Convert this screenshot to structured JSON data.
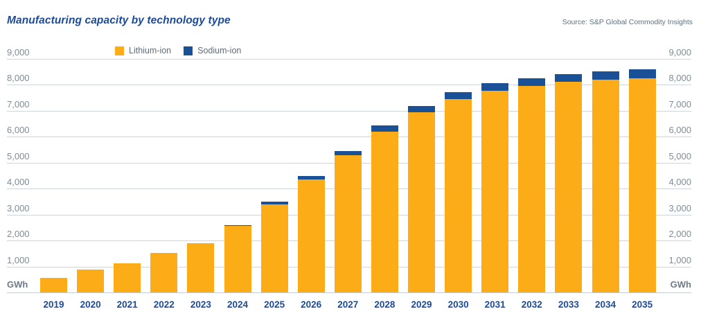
{
  "header": {
    "title": "Manufacturing capacity by technology type",
    "source": "Source: S&P Global Commodity Insights"
  },
  "axis": {
    "unit_label": "GWh",
    "yticks": [
      "9,000",
      "8,000",
      "7,000",
      "6,000",
      "5,000",
      "4,000",
      "3,000",
      "2,000",
      "1,000"
    ]
  },
  "colors": {
    "lithium": "#FBAC17",
    "sodium": "#1A5196",
    "title_blue": "#1B4A9B",
    "gridline": "#CDD5DA"
  },
  "chart_data": {
    "type": "bar",
    "stacked": true,
    "title": "Manufacturing capacity by technology type",
    "ylabel": "GWh",
    "ylim": [
      0,
      9000
    ],
    "ytick_interval": 1000,
    "grid": true,
    "legend_position": "top-left",
    "categories": [
      "2019",
      "2020",
      "2021",
      "2022",
      "2023",
      "2024",
      "2025",
      "2026",
      "2027",
      "2028",
      "2029",
      "2030",
      "2031",
      "2032",
      "2033",
      "2034",
      "2035"
    ],
    "series": [
      {
        "name": "Lithium-ion",
        "color": "#FBAC17",
        "values": [
          560,
          870,
          1130,
          1510,
          1890,
          2560,
          3400,
          4350,
          5270,
          6200,
          6930,
          7450,
          7760,
          7940,
          8110,
          8200,
          8250
        ]
      },
      {
        "name": "Sodium-ion",
        "color": "#1A5196",
        "values": [
          0,
          0,
          0,
          0,
          0,
          40,
          90,
          140,
          170,
          220,
          240,
          270,
          290,
          300,
          290,
          310,
          330
        ]
      }
    ]
  }
}
